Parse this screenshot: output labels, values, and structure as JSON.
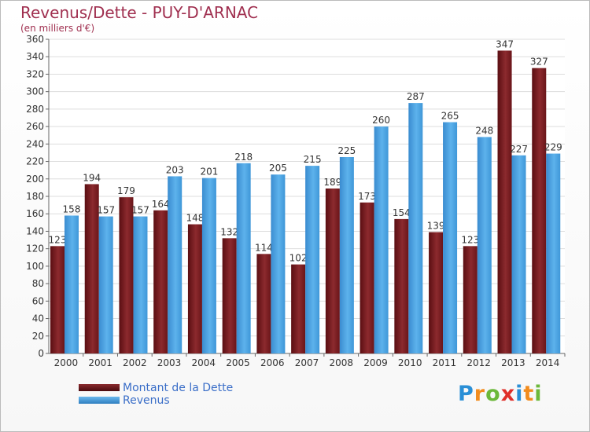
{
  "header": {
    "title": "Revenus/Dette - PUY-D'ARNAC",
    "subtitle": "(en milliers d'€)"
  },
  "legend": {
    "dette_label": "Montant de la Dette",
    "revenus_label": "Revenus"
  },
  "logo": {
    "text": "Proxiti"
  },
  "chart_data": {
    "type": "bar",
    "title": "Revenus/Dette - PUY-D'ARNAC",
    "ylabel": "(en milliers d'€)",
    "categories": [
      "2000",
      "2001",
      "2002",
      "2003",
      "2004",
      "2005",
      "2006",
      "2007",
      "2008",
      "2009",
      "2010",
      "2011",
      "2012",
      "2013",
      "2014"
    ],
    "series": [
      {
        "name": "Montant de la Dette",
        "color": "#6b1a1e",
        "values": [
          123,
          194,
          179,
          164,
          148,
          132,
          114,
          102,
          189,
          173,
          154,
          139,
          123,
          347,
          327
        ]
      },
      {
        "name": "Revenus",
        "color": "#3f97d8",
        "values": [
          158,
          157,
          157,
          203,
          201,
          218,
          205,
          215,
          225,
          260,
          287,
          265,
          248,
          227,
          229
        ]
      }
    ],
    "ylim": [
      0,
      360
    ],
    "yticks": [
      0,
      20,
      40,
      60,
      80,
      100,
      120,
      140,
      160,
      180,
      200,
      220,
      240,
      260,
      280,
      300,
      320,
      340,
      360
    ],
    "grid": true,
    "legend_position": "bottom-left"
  }
}
